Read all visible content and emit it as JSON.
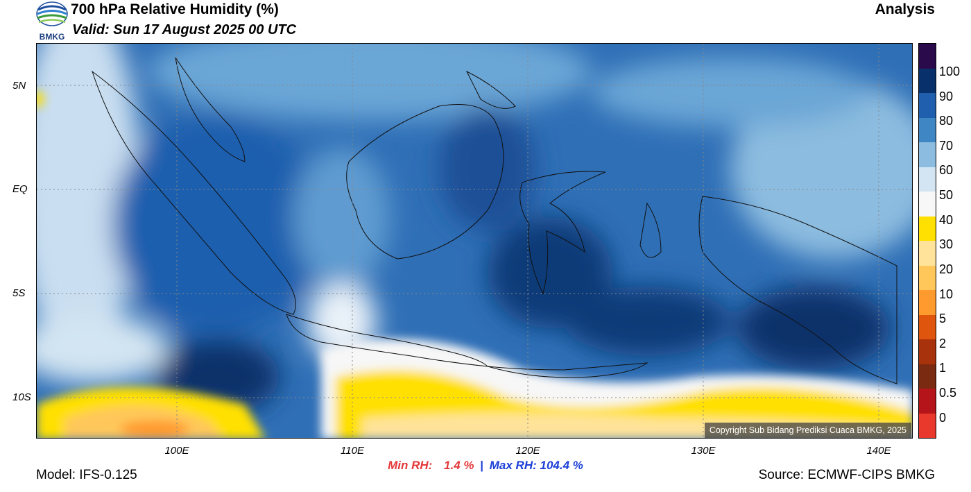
{
  "header": {
    "title": "700 hPa Relative Humidity (%)",
    "valid": "Valid: Sun 17 August 2025 00 UTC",
    "run_type": "Analysis",
    "logo_text": "BMKG"
  },
  "map": {
    "extent": {
      "lon_min": 92,
      "lon_max": 142,
      "lat_min": -12,
      "lat_max": 7
    },
    "lat_labels": [
      "5N",
      "EQ",
      "5S",
      "10S"
    ],
    "lat_values": [
      5,
      0,
      -5,
      -10
    ],
    "lon_labels": [
      "100E",
      "110E",
      "120E",
      "130E",
      "140E"
    ],
    "lon_values": [
      100,
      110,
      120,
      130,
      140
    ],
    "copyright": "Copyright Sub Bidang Prediksi Cuaca BMKG, 2025"
  },
  "stats": {
    "min_label": "Min RH:",
    "min_value": "1.4 %",
    "separator": "|",
    "max_label": "Max RH:",
    "max_value": "104.4 %"
  },
  "footer": {
    "model": "Model: IFS-0.125",
    "source": "Source: ECMWF-CIPS BMKG"
  },
  "colorbar": {
    "labels": [
      "100",
      "90",
      "80",
      "70",
      "60",
      "50",
      "40",
      "30",
      "20",
      "10",
      "5",
      "2",
      "1",
      "0.5",
      "0"
    ],
    "colors": [
      "#2a0a4a",
      "#08306b",
      "#1f5fae",
      "#3f86c4",
      "#8cbcdf",
      "#d3e5f2",
      "#f7f7f7",
      "#ffe000",
      "#ffe39a",
      "#ffc75a",
      "#ff9a2e",
      "#e0550e",
      "#a8320c",
      "#7a2a10",
      "#b5141a",
      "#e8392c"
    ]
  }
}
